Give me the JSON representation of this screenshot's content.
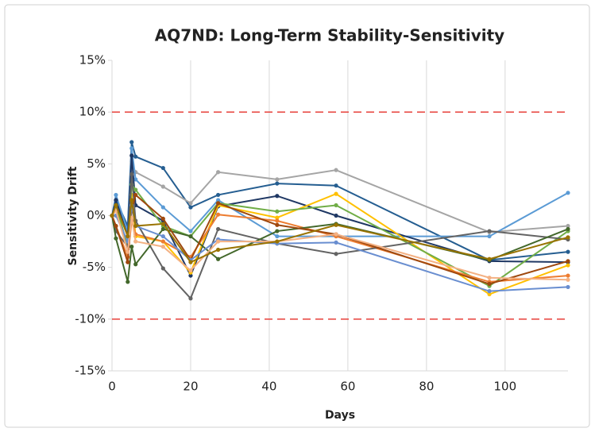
{
  "chart_data": {
    "type": "line",
    "title": "AQ7ND: Long-Term Stability-Sensitivity",
    "x_label": "Days",
    "y_label": "Sensitivity Drift",
    "x": [
      0,
      1,
      4,
      5,
      6,
      13,
      20,
      27,
      42,
      57,
      96,
      116
    ],
    "xlim": [
      0,
      116
    ],
    "xticks": [
      0,
      20,
      40,
      60,
      80,
      100
    ],
    "ylim": [
      -15,
      15
    ],
    "yticks": [
      {
        "value": -15,
        "label": "-15%"
      },
      {
        "value": -10,
        "label": "-10%"
      },
      {
        "value": -5,
        "label": "-5%"
      },
      {
        "value": 0,
        "label": "0%"
      },
      {
        "value": 5,
        "label": "5%"
      },
      {
        "value": 10,
        "label": "10%"
      },
      {
        "value": 15,
        "label": "15%"
      }
    ],
    "grid": "x",
    "reference_lines": [
      {
        "value": 10,
        "color": "#e8403a"
      },
      {
        "value": -10,
        "color": "#e8403a"
      }
    ],
    "series": [
      {
        "color": "#255e91",
        "values": [
          0,
          1.5,
          -1,
          7.1,
          5.7,
          4.6,
          0.8,
          2.0,
          3.1,
          2.9,
          -4.3,
          -3.5
        ]
      },
      {
        "color": "#a5a5a5",
        "values": [
          0,
          1,
          -2,
          5,
          4.2,
          2.8,
          1.2,
          4.2,
          3.5,
          4.4,
          -1.6,
          -1.0
        ]
      },
      {
        "color": "#5b9bd5",
        "values": [
          0,
          2,
          -1.5,
          6.5,
          3.5,
          0.8,
          -1.5,
          1.5,
          -2.0,
          -2.0,
          -2.0,
          2.2
        ]
      },
      {
        "color": "#1f3864",
        "values": [
          0,
          1.5,
          -2,
          5.8,
          1,
          -0.5,
          -5.8,
          0.9,
          1.9,
          0.0,
          -4.4,
          -4.5
        ]
      },
      {
        "color": "#ffc000",
        "values": [
          0,
          0.5,
          -3,
          2,
          -2,
          -2.5,
          -5.5,
          1.0,
          -0.2,
          2.1,
          -7.6,
          -4.8
        ]
      },
      {
        "color": "#70ad47",
        "values": [
          0,
          1,
          -3,
          3,
          2.5,
          -1,
          -2,
          1.2,
          0.4,
          1.0,
          -6.8,
          -1.5
        ]
      },
      {
        "color": "#ed7d31",
        "values": [
          0,
          -1,
          -4,
          -0.5,
          -1.8,
          -2.5,
          -4.0,
          0.1,
          -0.5,
          -2.0,
          -6.4,
          -5.8
        ]
      },
      {
        "color": "#636363",
        "values": [
          0,
          -1.5,
          -3,
          4,
          -0.5,
          -5.1,
          -8.0,
          -1.3,
          -2.7,
          -3.7,
          -1.5,
          -2.3
        ]
      },
      {
        "color": "#43682b",
        "values": [
          0,
          -2.2,
          -6.4,
          -3,
          -4.7,
          -1.3,
          -2.0,
          -4.2,
          -1.5,
          -0.8,
          -4.3,
          -1.3
        ]
      },
      {
        "color": "#9e480e",
        "values": [
          0,
          -1,
          -4.5,
          0.5,
          2,
          -0.3,
          -4.3,
          1.2,
          -0.9,
          -1.8,
          -6.6,
          -4.4
        ]
      },
      {
        "color": "#698ed0",
        "values": [
          0,
          0,
          -2.5,
          1,
          -1,
          -2,
          -4.3,
          -2.3,
          -2.7,
          -2.6,
          -7.3,
          -6.9
        ]
      },
      {
        "color": "#f4b183",
        "values": [
          0,
          0.5,
          -3.5,
          -0.2,
          -2.5,
          -3,
          -5.3,
          -2.5,
          -2.5,
          -1.8,
          -6.0,
          -6.2
        ]
      },
      {
        "color": "#997300",
        "values": [
          0,
          1,
          -2,
          1.5,
          -1,
          -0.8,
          -4.5,
          -3.3,
          -2.5,
          -0.9,
          -4.2,
          -2.1
        ]
      }
    ]
  }
}
